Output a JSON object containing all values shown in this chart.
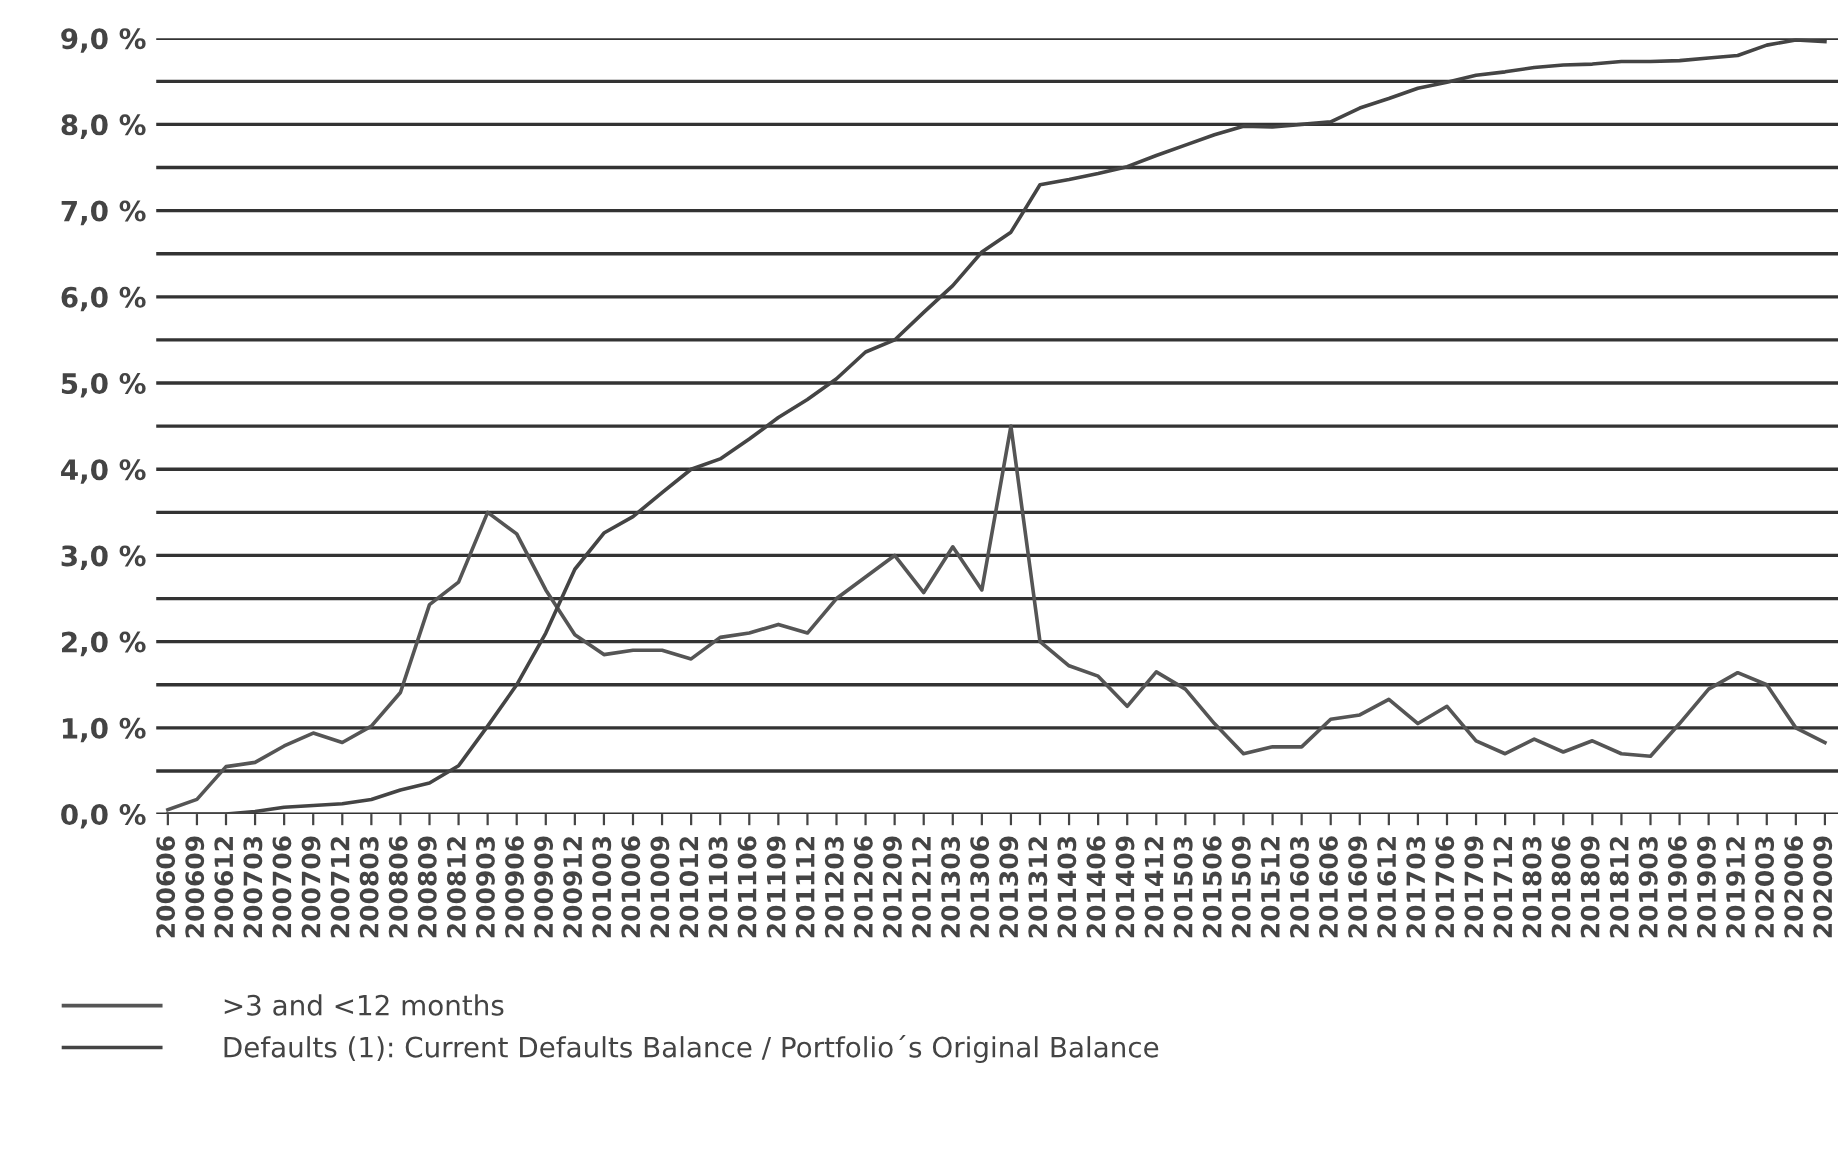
{
  "chart_data": {
    "type": "line",
    "categories": [
      "200606",
      "200609",
      "200612",
      "200703",
      "200706",
      "200709",
      "200712",
      "200803",
      "200806",
      "200809",
      "200812",
      "200903",
      "200906",
      "200909",
      "200912",
      "201003",
      "201006",
      "201009",
      "201012",
      "201103",
      "201106",
      "201109",
      "201112",
      "201203",
      "201206",
      "201209",
      "201212",
      "201303",
      "201306",
      "201309",
      "201312",
      "201403",
      "201406",
      "201409",
      "201412",
      "201503",
      "201506",
      "201509",
      "201512",
      "201603",
      "201606",
      "201609",
      "201612",
      "201703",
      "201706",
      "201709",
      "201712",
      "201803",
      "201806",
      "201809",
      "201812",
      "201903",
      "201906",
      "201909",
      "201912",
      "202003",
      "202006",
      "202009"
    ],
    "series": [
      {
        "name": ">3 and <12 months",
        "color": "#555555",
        "values": [
          0.05,
          0.17,
          0.55,
          0.6,
          0.79,
          0.94,
          0.83,
          1.02,
          1.41,
          2.43,
          2.69,
          3.5,
          3.25,
          2.6,
          2.08,
          1.85,
          1.9,
          1.9,
          1.8,
          2.05,
          2.1,
          2.2,
          2.1,
          2.5,
          2.75,
          3.0,
          2.57,
          3.1,
          2.6,
          4.5,
          2.0,
          1.72,
          1.6,
          1.25,
          1.65,
          1.45,
          1.05,
          0.7,
          0.78,
          0.78,
          1.1,
          1.15,
          1.33,
          1.05,
          1.25,
          0.85,
          0.7,
          0.87,
          0.72,
          0.85,
          0.7,
          0.67,
          1.05,
          1.45,
          1.64,
          1.5,
          1.0,
          0.83
        ]
      },
      {
        "name": "Defaults (1): Current Defaults Balance / Portfolio´s Original Balance",
        "color": "#444444",
        "values": [
          0.0,
          0.0,
          0.0,
          0.03,
          0.08,
          0.1,
          0.12,
          0.17,
          0.28,
          0.36,
          0.56,
          1.02,
          1.5,
          2.1,
          2.84,
          3.26,
          3.45,
          3.73,
          4.0,
          4.12,
          4.35,
          4.6,
          4.81,
          5.05,
          5.36,
          5.5,
          5.82,
          6.13,
          6.52,
          6.75,
          7.3,
          7.36,
          7.43,
          7.51,
          7.64,
          7.76,
          7.88,
          7.98,
          7.97,
          8.0,
          8.03,
          8.19,
          8.3,
          8.42,
          8.49,
          8.57,
          8.61,
          8.66,
          8.69,
          8.7,
          8.73,
          8.73,
          8.74,
          8.77,
          8.8,
          8.92,
          8.98,
          8.96
        ]
      }
    ],
    "ylim": [
      0,
      9.0
    ],
    "yticks": [
      {
        "value": 0,
        "label": "0,0 %"
      },
      {
        "value": 0.5,
        "label": null
      },
      {
        "value": 1,
        "label": "1,0 %"
      },
      {
        "value": 1.5,
        "label": null
      },
      {
        "value": 2,
        "label": "2,0 %"
      },
      {
        "value": 2.5,
        "label": null
      },
      {
        "value": 3,
        "label": "3,0 %"
      },
      {
        "value": 3.5,
        "label": null
      },
      {
        "value": 4,
        "label": "4,0 %"
      },
      {
        "value": 4.5,
        "label": null
      },
      {
        "value": 5,
        "label": "5,0 %"
      },
      {
        "value": 5.5,
        "label": null
      },
      {
        "value": 6,
        "label": "6,0 %"
      },
      {
        "value": 6.5,
        "label": null
      },
      {
        "value": 7,
        "label": "7,0 %"
      },
      {
        "value": 7.5,
        "label": null
      },
      {
        "value": 8,
        "label": "8,0 %"
      },
      {
        "value": 8.5,
        "label": null
      },
      {
        "value": 9,
        "label": "9,0 %"
      }
    ],
    "grid": "y",
    "legend": "bottom",
    "marker": "none",
    "line_style": "solid"
  }
}
